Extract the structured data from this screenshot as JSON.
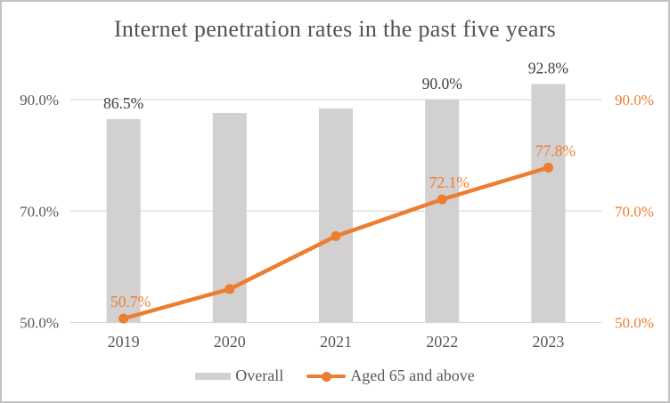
{
  "title": "Internet penetration rates in the past five years",
  "chart_data": {
    "type": "combo",
    "categories": [
      "2019",
      "2020",
      "2021",
      "2022",
      "2023"
    ],
    "series": [
      {
        "name": "Overall",
        "type": "bar",
        "color": "#d2d0d0",
        "values": [
          86.5,
          87.6,
          88.4,
          90.0,
          92.8
        ],
        "labels": [
          "86.5%",
          "",
          "",
          "90.0%",
          "92.8%"
        ],
        "label_color": "#3f3f3f"
      },
      {
        "name": "Aged 65 and above",
        "type": "line",
        "color": "#ed7d31",
        "values": [
          50.7,
          56.0,
          65.5,
          72.1,
          77.8
        ],
        "labels": [
          "50.7%",
          "",
          "",
          "72.1%",
          "77.8%"
        ],
        "label_color": "#ed7d31"
      }
    ],
    "left_axis": {
      "ticks": [
        "90.0%",
        "70.0%",
        "50.0%"
      ],
      "tick_values": [
        90,
        70,
        50
      ],
      "color": "#595959"
    },
    "right_axis": {
      "ticks": [
        "90.0%",
        "70.0%",
        "50.0%"
      ],
      "tick_values": [
        90,
        70,
        50
      ],
      "color": "#ed7d31"
    },
    "xlabel": "",
    "ylabel": "",
    "ylim": [
      50,
      90
    ],
    "grid": true,
    "gridline_color": "#d9d9d9",
    "x_label_color": "#595959",
    "legend_position": "bottom"
  },
  "legend": {
    "items": [
      {
        "label": "Overall",
        "color": "#d2d0d0"
      },
      {
        "label": "Aged 65 and above",
        "color": "#ed7d31"
      }
    ]
  }
}
